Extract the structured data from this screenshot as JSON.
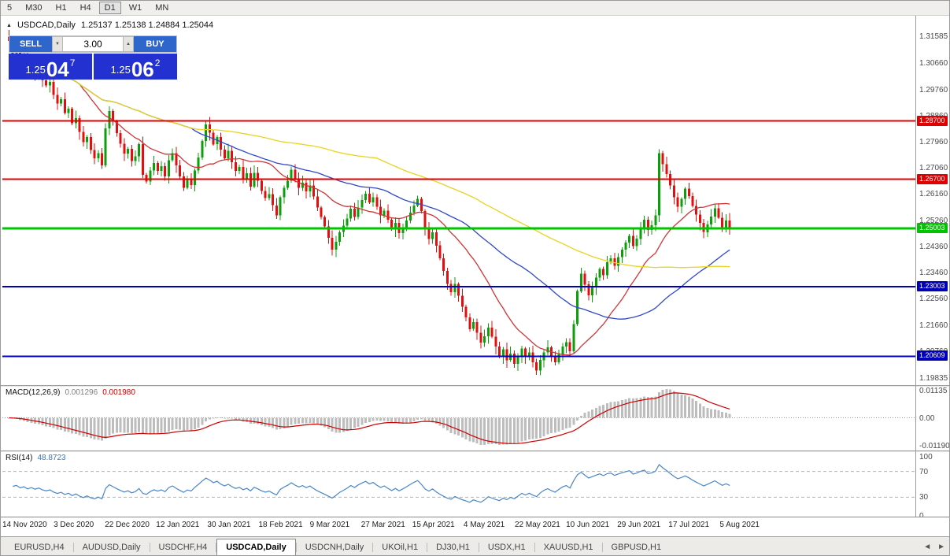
{
  "toolbar": {
    "timeframes": [
      "5",
      "M30",
      "H1",
      "H4",
      "D1",
      "W1",
      "MN"
    ],
    "active": "D1"
  },
  "chart_header": {
    "toggle_icon": "▲",
    "symbol_period": "USDCAD,Daily",
    "ohlc_text": "1.25137 1.25138 1.24884 1.25044"
  },
  "trade_panel": {
    "sell_label": "SELL",
    "buy_label": "BUY",
    "volume": "3.00",
    "sell": {
      "base": "1.25",
      "pips": "04",
      "point": "7"
    },
    "buy": {
      "base": "1.25",
      "pips": "06",
      "point": "2"
    }
  },
  "icons": {
    "volume_down": "▼",
    "volume_up": "▲",
    "tab_scroll_left": "◄",
    "tab_scroll_right": "►"
  },
  "colors": {
    "button_blue": "#2e66cc",
    "price_box_blue": "#2231cf",
    "candle_up": "#0ba00b",
    "candle_down": "#e01010"
  },
  "price_axis": {
    "labels": [
      "1.31585",
      "1.30660",
      "1.29760",
      "1.28860",
      "1.27960",
      "1.27060",
      "1.26160",
      "1.25260",
      "1.24360",
      "1.23460",
      "1.22560",
      "1.21660",
      "1.20760",
      "1.19835"
    ]
  },
  "macd_panel": {
    "name": "MACD(12,26,9)",
    "value_main": "0.001296",
    "value_signal": "0.001980",
    "axis": [
      "0.01135",
      "0.00",
      "-0.01190"
    ]
  },
  "rsi_panel": {
    "name": "RSI(14)",
    "value": "48.8723",
    "axis": [
      "100",
      "70",
      "30",
      "0"
    ]
  },
  "date_axis": [
    "14 Nov 2020",
    "3 Dec 2020",
    "22 Dec 2020",
    "12 Jan 2021",
    "30 Jan 2021",
    "18 Feb 2021",
    "9 Mar 2021",
    "27 Mar 2021",
    "15 Apr 2021",
    "4 May 2021",
    "22 May 2021",
    "10 Jun 2021",
    "29 Jun 2021",
    "17 Jul 2021",
    "5 Aug 2021"
  ],
  "tabs": {
    "items": [
      "EURUSD,H4",
      "AUDUSD,Daily",
      "USDCHF,H4",
      "USDCAD,Daily",
      "USDCNH,Daily",
      "UKOil,H1",
      "DJ30,H1",
      "USDX,H1",
      "XAUUSD,H1",
      "GBPUSD,H1"
    ],
    "active_index": 3
  },
  "chart_data": {
    "type": "candlestick",
    "symbol": "USDCAD",
    "timeframe": "Daily",
    "visible_range": {
      "start": "14 Nov 2020",
      "end": "13 Aug 2021"
    },
    "price_range": {
      "min": 1.1962,
      "max": 1.3232
    },
    "current_bar": {
      "open": 1.25137,
      "high": 1.25138,
      "low": 1.24884,
      "close": 1.25044
    },
    "closes": [
      1.3145,
      1.3102,
      1.312,
      1.3068,
      1.3088,
      1.3042,
      1.3064,
      1.303,
      1.3048,
      1.301,
      1.2992,
      1.3005,
      1.296,
      1.293,
      1.2945,
      1.2898,
      1.2912,
      1.2862,
      1.288,
      1.2832,
      1.2798,
      1.2815,
      1.277,
      1.2742,
      1.276,
      1.2718,
      1.2845,
      1.2905,
      1.2868,
      1.2828,
      1.2792,
      1.2758,
      1.2775,
      1.2732,
      1.2748,
      1.279,
      1.2685,
      1.2662,
      1.27,
      1.2725,
      1.2698,
      1.2715,
      1.268,
      1.2735,
      1.276,
      1.2718,
      1.268,
      1.264,
      1.2672,
      1.265,
      1.27,
      1.2745,
      1.2802,
      1.2858,
      1.283,
      1.279,
      1.2815,
      1.2772,
      1.2742,
      1.2768,
      1.2728,
      1.2698,
      1.2712,
      1.2672,
      1.269,
      1.2645,
      1.2692,
      1.2665,
      1.263,
      1.2605,
      1.2618,
      1.258,
      1.2545,
      1.2608,
      1.264,
      1.2665,
      1.2702,
      1.2668,
      1.264,
      1.2658,
      1.2628,
      1.2648,
      1.261,
      1.2572,
      1.254,
      1.2508,
      1.2468,
      1.2428,
      1.2455,
      1.2488,
      1.251,
      1.2535,
      1.2568,
      1.254,
      1.2572,
      1.2598,
      1.262,
      1.259,
      1.2608,
      1.2575,
      1.2545,
      1.2562,
      1.253,
      1.2498,
      1.252,
      1.2485,
      1.2505,
      1.2528,
      1.2555,
      1.258,
      1.2602,
      1.256,
      1.2498,
      1.2465,
      1.2488,
      1.2442,
      1.2398,
      1.2355,
      1.231,
      1.2282,
      1.231,
      1.227,
      1.2232,
      1.2195,
      1.2155,
      1.2178,
      1.2142,
      1.2108,
      1.213,
      1.216,
      1.2128,
      1.2095,
      1.2062,
      1.2085,
      1.2048,
      1.207,
      1.2035,
      1.206,
      1.2088,
      1.2058,
      1.2075,
      1.204,
      1.2012,
      1.2048,
      1.2075,
      1.2092,
      1.2062,
      1.204,
      1.2068,
      1.2095,
      1.211,
      1.2078,
      1.2172,
      1.2285,
      1.2345,
      1.2308,
      1.227,
      1.2298,
      1.2332,
      1.2362,
      1.234,
      1.2385,
      1.2398,
      1.2372,
      1.2402,
      1.2428,
      1.2452,
      1.2475,
      1.244,
      1.2465,
      1.2502,
      1.253,
      1.2495,
      1.2512,
      1.2545,
      1.276,
      1.2722,
      1.2688,
      1.2648,
      1.2608,
      1.2575,
      1.2602,
      1.2638,
      1.2612,
      1.2578,
      1.2548,
      1.252,
      1.2488,
      1.2515,
      1.2542,
      1.257,
      1.2538,
      1.2505,
      1.2528,
      1.2504
    ],
    "colors": {
      "up": "#0ba00b",
      "down": "#e01010",
      "macd_hist": "#bdbdbd",
      "macd_signal": "#cc0000",
      "rsi_line": "#4a86c8"
    },
    "overlays": [
      {
        "name": "SMA-fast",
        "period": 20,
        "color": "#cf3535"
      },
      {
        "name": "SMA-mid",
        "period": 50,
        "color": "#2f48c8"
      },
      {
        "name": "SMA-slow",
        "period": 100,
        "color": "#e8d41e"
      }
    ],
    "levels": [
      {
        "price": 1.287,
        "label": "1.28700",
        "color": "#e00000",
        "width": 2
      },
      {
        "price": 1.267,
        "label": "1.26700",
        "color": "#e00000",
        "width": 2
      },
      {
        "price": 1.25003,
        "label": "1.25003",
        "color": "#00c400",
        "width": 3
      },
      {
        "price": 1.23003,
        "label": "1.23003",
        "color": "#0000bb",
        "width": 2
      },
      {
        "price": 1.20609,
        "label": "1.20609",
        "color": "#0000bb",
        "width": 2
      }
    ],
    "indicators": [
      {
        "name": "MACD",
        "params": [
          12,
          26,
          9
        ],
        "current_main": 0.001296,
        "current_signal": 0.00198,
        "range": {
          "min": -0.0128,
          "max": 0.0122
        }
      },
      {
        "name": "RSI",
        "params": [
          14
        ],
        "current": 48.8723,
        "range": {
          "min": 0,
          "max": 100
        },
        "levels": [
          70,
          30
        ]
      }
    ]
  }
}
